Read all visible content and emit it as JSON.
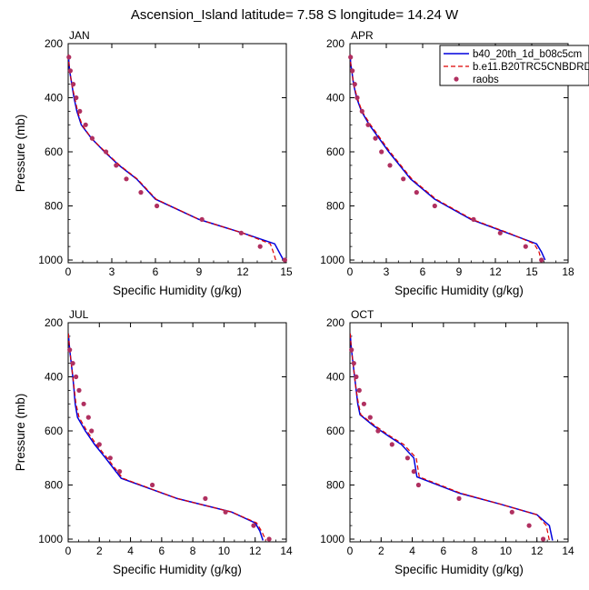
{
  "title": "Ascension_Island  latitude= 7.58 S longitude= 14.24 W",
  "colors": {
    "series1": "#0000dd",
    "series2": "#dd0000",
    "raobs": "#b03060"
  },
  "legend": {
    "entries": [
      "b40_20th_1d_b08c5cm",
      "b.e11.B20TRC5CNBDRD",
      "raobs"
    ]
  },
  "chart_data": [
    {
      "type": "line",
      "title": "JAN",
      "xlabel": "Specific Humidity (g/kg)",
      "ylabel": "Pressure (mb)",
      "xlim": [
        0,
        15
      ],
      "ylim": [
        200,
        1010
      ],
      "y_inverted": true,
      "grid": false,
      "xticks": [
        0,
        3,
        6,
        9,
        12,
        15
      ],
      "yticks": [
        200,
        400,
        600,
        800,
        1000
      ],
      "series": [
        {
          "name": "b40_20th_1d_b08c5cm",
          "style": "solid",
          "points": [
            [
              0.02,
              240
            ],
            [
              0.05,
              270
            ],
            [
              0.1,
              300
            ],
            [
              0.25,
              350
            ],
            [
              0.4,
              400
            ],
            [
              0.6,
              450
            ],
            [
              0.9,
              500
            ],
            [
              1.6,
              550
            ],
            [
              2.5,
              600
            ],
            [
              3.5,
              650
            ],
            [
              4.7,
              700
            ],
            [
              6.0,
              775
            ],
            [
              9.0,
              850
            ],
            [
              12.0,
              900
            ],
            [
              14.2,
              940
            ],
            [
              14.5,
              970
            ],
            [
              14.8,
              1000
            ]
          ]
        },
        {
          "name": "b.e11.B20TRC5CNBDRD",
          "style": "dashed",
          "points": [
            [
              0.02,
              240
            ],
            [
              0.05,
              270
            ],
            [
              0.1,
              300
            ],
            [
              0.25,
              350
            ],
            [
              0.45,
              400
            ],
            [
              0.65,
              450
            ],
            [
              0.95,
              500
            ],
            [
              1.6,
              550
            ],
            [
              2.55,
              600
            ],
            [
              3.55,
              650
            ],
            [
              4.75,
              700
            ],
            [
              6.05,
              775
            ],
            [
              9.0,
              850
            ],
            [
              12.0,
              900
            ],
            [
              13.9,
              940
            ],
            [
              14.1,
              970
            ],
            [
              14.3,
              1005
            ]
          ]
        }
      ],
      "raobs": [
        [
          0.05,
          250
        ],
        [
          0.15,
          300
        ],
        [
          0.35,
          350
        ],
        [
          0.55,
          400
        ],
        [
          0.8,
          450
        ],
        [
          1.2,
          500
        ],
        [
          1.65,
          550
        ],
        [
          2.6,
          600
        ],
        [
          3.3,
          650
        ],
        [
          4.0,
          700
        ],
        [
          5.0,
          750
        ],
        [
          6.1,
          800
        ],
        [
          9.2,
          850
        ],
        [
          11.9,
          900
        ],
        [
          13.2,
          950
        ],
        [
          14.9,
          1000
        ]
      ]
    },
    {
      "type": "line",
      "title": "APR",
      "xlabel": "Specific Humidity (g/kg)",
      "ylabel": "Pressure (mb)",
      "xlim": [
        0,
        18
      ],
      "ylim": [
        200,
        1010
      ],
      "y_inverted": true,
      "grid": false,
      "xticks": [
        0,
        3,
        6,
        9,
        12,
        15,
        18
      ],
      "yticks": [
        200,
        400,
        600,
        800,
        1000
      ],
      "series": [
        {
          "name": "b40_20th_1d_b08c5cm",
          "style": "solid",
          "points": [
            [
              0.02,
              240
            ],
            [
              0.05,
              270
            ],
            [
              0.15,
              300
            ],
            [
              0.3,
              350
            ],
            [
              0.55,
              400
            ],
            [
              0.95,
              450
            ],
            [
              1.6,
              500
            ],
            [
              2.4,
              550
            ],
            [
              3.2,
              600
            ],
            [
              4.1,
              650
            ],
            [
              5.0,
              700
            ],
            [
              7.0,
              775
            ],
            [
              10.0,
              850
            ],
            [
              13.0,
              900
            ],
            [
              15.4,
              940
            ],
            [
              15.8,
              970
            ],
            [
              16.1,
              1000
            ]
          ]
        },
        {
          "name": "b.e11.B20TRC5CNBDRD",
          "style": "dashed",
          "points": [
            [
              0.02,
              240
            ],
            [
              0.05,
              270
            ],
            [
              0.15,
              300
            ],
            [
              0.3,
              350
            ],
            [
              0.6,
              400
            ],
            [
              1.0,
              450
            ],
            [
              1.7,
              500
            ],
            [
              2.5,
              550
            ],
            [
              3.3,
              600
            ],
            [
              4.2,
              650
            ],
            [
              5.1,
              700
            ],
            [
              7.1,
              775
            ],
            [
              10.1,
              850
            ],
            [
              13.1,
              900
            ],
            [
              15.2,
              940
            ],
            [
              15.6,
              970
            ],
            [
              15.8,
              1005
            ]
          ]
        }
      ],
      "raobs": [
        [
          0.05,
          250
        ],
        [
          0.2,
          300
        ],
        [
          0.4,
          350
        ],
        [
          0.6,
          400
        ],
        [
          1.0,
          450
        ],
        [
          1.5,
          500
        ],
        [
          2.1,
          550
        ],
        [
          2.6,
          600
        ],
        [
          3.3,
          650
        ],
        [
          4.4,
          700
        ],
        [
          5.5,
          750
        ],
        [
          7.0,
          800
        ],
        [
          10.2,
          850
        ],
        [
          12.4,
          900
        ],
        [
          14.5,
          950
        ],
        [
          15.8,
          1000
        ]
      ]
    },
    {
      "type": "line",
      "title": "JUL",
      "xlabel": "Specific Humidity (g/kg)",
      "ylabel": "Pressure (mb)",
      "xlim": [
        0,
        14
      ],
      "ylim": [
        200,
        1010
      ],
      "y_inverted": true,
      "grid": false,
      "xticks": [
        0,
        2,
        4,
        6,
        8,
        10,
        12,
        14
      ],
      "yticks": [
        200,
        400,
        600,
        800,
        1000
      ],
      "series": [
        {
          "name": "b40_20th_1d_b08c5cm",
          "style": "solid",
          "points": [
            [
              0.02,
              240
            ],
            [
              0.05,
              270
            ],
            [
              0.1,
              300
            ],
            [
              0.2,
              350
            ],
            [
              0.3,
              400
            ],
            [
              0.38,
              450
            ],
            [
              0.45,
              500
            ],
            [
              0.6,
              550
            ],
            [
              1.1,
              600
            ],
            [
              1.7,
              650
            ],
            [
              2.4,
              700
            ],
            [
              3.4,
              775
            ],
            [
              7.0,
              850
            ],
            [
              10.5,
              900
            ],
            [
              12.0,
              940
            ],
            [
              12.3,
              970
            ],
            [
              12.5,
              1005
            ]
          ]
        },
        {
          "name": "b.e11.B20TRC5CNBDRD",
          "style": "dashed",
          "points": [
            [
              0.02,
              240
            ],
            [
              0.05,
              270
            ],
            [
              0.1,
              300
            ],
            [
              0.2,
              350
            ],
            [
              0.3,
              400
            ],
            [
              0.4,
              450
            ],
            [
              0.5,
              500
            ],
            [
              0.7,
              550
            ],
            [
              1.2,
              600
            ],
            [
              1.8,
              650
            ],
            [
              2.5,
              700
            ],
            [
              3.5,
              775
            ],
            [
              7.0,
              850
            ],
            [
              10.5,
              900
            ],
            [
              12.1,
              940
            ],
            [
              12.4,
              970
            ],
            [
              12.7,
              1005
            ]
          ]
        }
      ],
      "raobs": [
        [
          0.1,
          300
        ],
        [
          0.3,
          350
        ],
        [
          0.5,
          400
        ],
        [
          0.7,
          450
        ],
        [
          1.0,
          500
        ],
        [
          1.3,
          550
        ],
        [
          1.5,
          600
        ],
        [
          2.0,
          650
        ],
        [
          2.7,
          700
        ],
        [
          3.3,
          750
        ],
        [
          5.4,
          800
        ],
        [
          8.8,
          850
        ],
        [
          10.1,
          900
        ],
        [
          11.9,
          950
        ],
        [
          12.9,
          1000
        ]
      ]
    },
    {
      "type": "line",
      "title": "OCT",
      "xlabel": "Specific Humidity (g/kg)",
      "ylabel": "Pressure (mb)",
      "xlim": [
        0,
        14
      ],
      "ylim": [
        200,
        1010
      ],
      "y_inverted": true,
      "grid": false,
      "xticks": [
        0,
        2,
        4,
        6,
        8,
        10,
        12,
        14
      ],
      "yticks": [
        200,
        400,
        600,
        800,
        1000
      ],
      "series": [
        {
          "name": "b40_20th_1d_b08c5cm",
          "style": "solid",
          "points": [
            [
              0.02,
              240
            ],
            [
              0.05,
              270
            ],
            [
              0.1,
              300
            ],
            [
              0.2,
              350
            ],
            [
              0.3,
              400
            ],
            [
              0.4,
              450
            ],
            [
              0.5,
              500
            ],
            [
              0.65,
              540
            ],
            [
              1.5,
              580
            ],
            [
              2.5,
              620
            ],
            [
              3.3,
              650
            ],
            [
              4.1,
              700
            ],
            [
              4.3,
              770
            ],
            [
              7.0,
              830
            ],
            [
              9.6,
              870
            ],
            [
              12.0,
              910
            ],
            [
              12.8,
              950
            ],
            [
              13.0,
              1005
            ]
          ]
        },
        {
          "name": "b.e11.B20TRC5CNBDRD",
          "style": "dashed",
          "points": [
            [
              0.02,
              240
            ],
            [
              0.05,
              270
            ],
            [
              0.1,
              300
            ],
            [
              0.2,
              350
            ],
            [
              0.3,
              400
            ],
            [
              0.4,
              450
            ],
            [
              0.55,
              500
            ],
            [
              0.7,
              540
            ],
            [
              1.6,
              580
            ],
            [
              2.6,
              620
            ],
            [
              3.45,
              650
            ],
            [
              4.25,
              700
            ],
            [
              4.45,
              770
            ],
            [
              7.1,
              830
            ],
            [
              9.6,
              870
            ],
            [
              12.0,
              910
            ],
            [
              12.6,
              950
            ],
            [
              12.8,
              1005
            ]
          ]
        }
      ],
      "raobs": [
        [
          0.1,
          300
        ],
        [
          0.25,
          350
        ],
        [
          0.4,
          400
        ],
        [
          0.6,
          450
        ],
        [
          0.9,
          500
        ],
        [
          1.3,
          550
        ],
        [
          1.8,
          600
        ],
        [
          2.7,
          650
        ],
        [
          3.7,
          700
        ],
        [
          4.1,
          750
        ],
        [
          4.4,
          800
        ],
        [
          7.0,
          850
        ],
        [
          10.4,
          900
        ],
        [
          11.5,
          950
        ],
        [
          12.4,
          1000
        ]
      ]
    }
  ]
}
